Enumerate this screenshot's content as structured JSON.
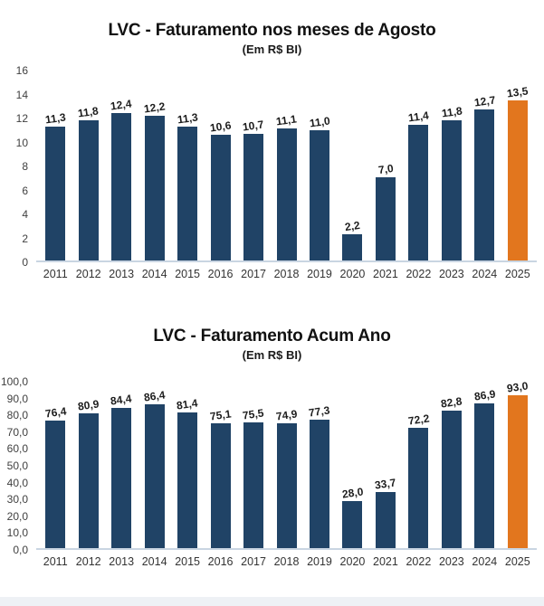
{
  "page": {
    "background": "#ffffff",
    "footer_strip_color": "#eef1f5"
  },
  "chart_data": [
    {
      "type": "bar",
      "title": "LVC - Faturamento nos meses de Agosto",
      "subtitle": "(Em R$ BI)",
      "categories": [
        "2011",
        "2012",
        "2013",
        "2014",
        "2015",
        "2016",
        "2017",
        "2018",
        "2019",
        "2020",
        "2021",
        "2022",
        "2023",
        "2024",
        "2025"
      ],
      "values": [
        11.3,
        11.8,
        12.4,
        12.2,
        11.3,
        10.6,
        10.7,
        11.1,
        11.0,
        2.2,
        7.0,
        11.4,
        11.8,
        12.7,
        13.5
      ],
      "value_labels": [
        "11,3",
        "11,8",
        "12,4",
        "12,2",
        "11,3",
        "10,6",
        "10,7",
        "11,1",
        "11,0",
        "2,2",
        "7,0",
        "11,4",
        "11,8",
        "12,7",
        "13,5"
      ],
      "xlabel": "",
      "ylabel": "",
      "ylim": [
        0,
        16
      ],
      "yticks": [
        0,
        2,
        4,
        6,
        8,
        10,
        12,
        14,
        16
      ],
      "ytick_labels": [
        "0",
        "2",
        "4",
        "6",
        "8",
        "10",
        "12",
        "14",
        "16"
      ],
      "grid": false,
      "legend": "none",
      "bar_color": "#204366",
      "highlight_index": 14,
      "highlight_color": "#e2761e"
    },
    {
      "type": "bar",
      "title": "LVC - Faturamento Acum Ano",
      "subtitle": "(Em R$ BI)",
      "categories": [
        "2011",
        "2012",
        "2013",
        "2014",
        "2015",
        "2016",
        "2017",
        "2018",
        "2019",
        "2020",
        "2021",
        "2022",
        "2023",
        "2024",
        "2025"
      ],
      "values": [
        76.4,
        80.9,
        84.4,
        86.4,
        81.4,
        75.1,
        75.5,
        74.9,
        77.3,
        28.0,
        33.7,
        72.2,
        82.8,
        86.9,
        93.0
      ],
      "value_labels": [
        "76,4",
        "80,9",
        "84,4",
        "86,4",
        "81,4",
        "75,1",
        "75,5",
        "74,9",
        "77,3",
        "28,0",
        "33,7",
        "72,2",
        "82,8",
        "86,9",
        "93,0"
      ],
      "xlabel": "",
      "ylabel": "",
      "ylim": [
        0,
        100
      ],
      "yticks": [
        0,
        10,
        20,
        30,
        40,
        50,
        60,
        70,
        80,
        90,
        100
      ],
      "ytick_labels": [
        "0,0",
        "10,0",
        "20,0",
        "30,0",
        "40,0",
        "50,0",
        "60,0",
        "70,0",
        "80,0",
        "90,0",
        "100,0"
      ],
      "grid": false,
      "legend": "none",
      "bar_color": "#204366",
      "highlight_index": 14,
      "highlight_color": "#e2761e"
    }
  ]
}
